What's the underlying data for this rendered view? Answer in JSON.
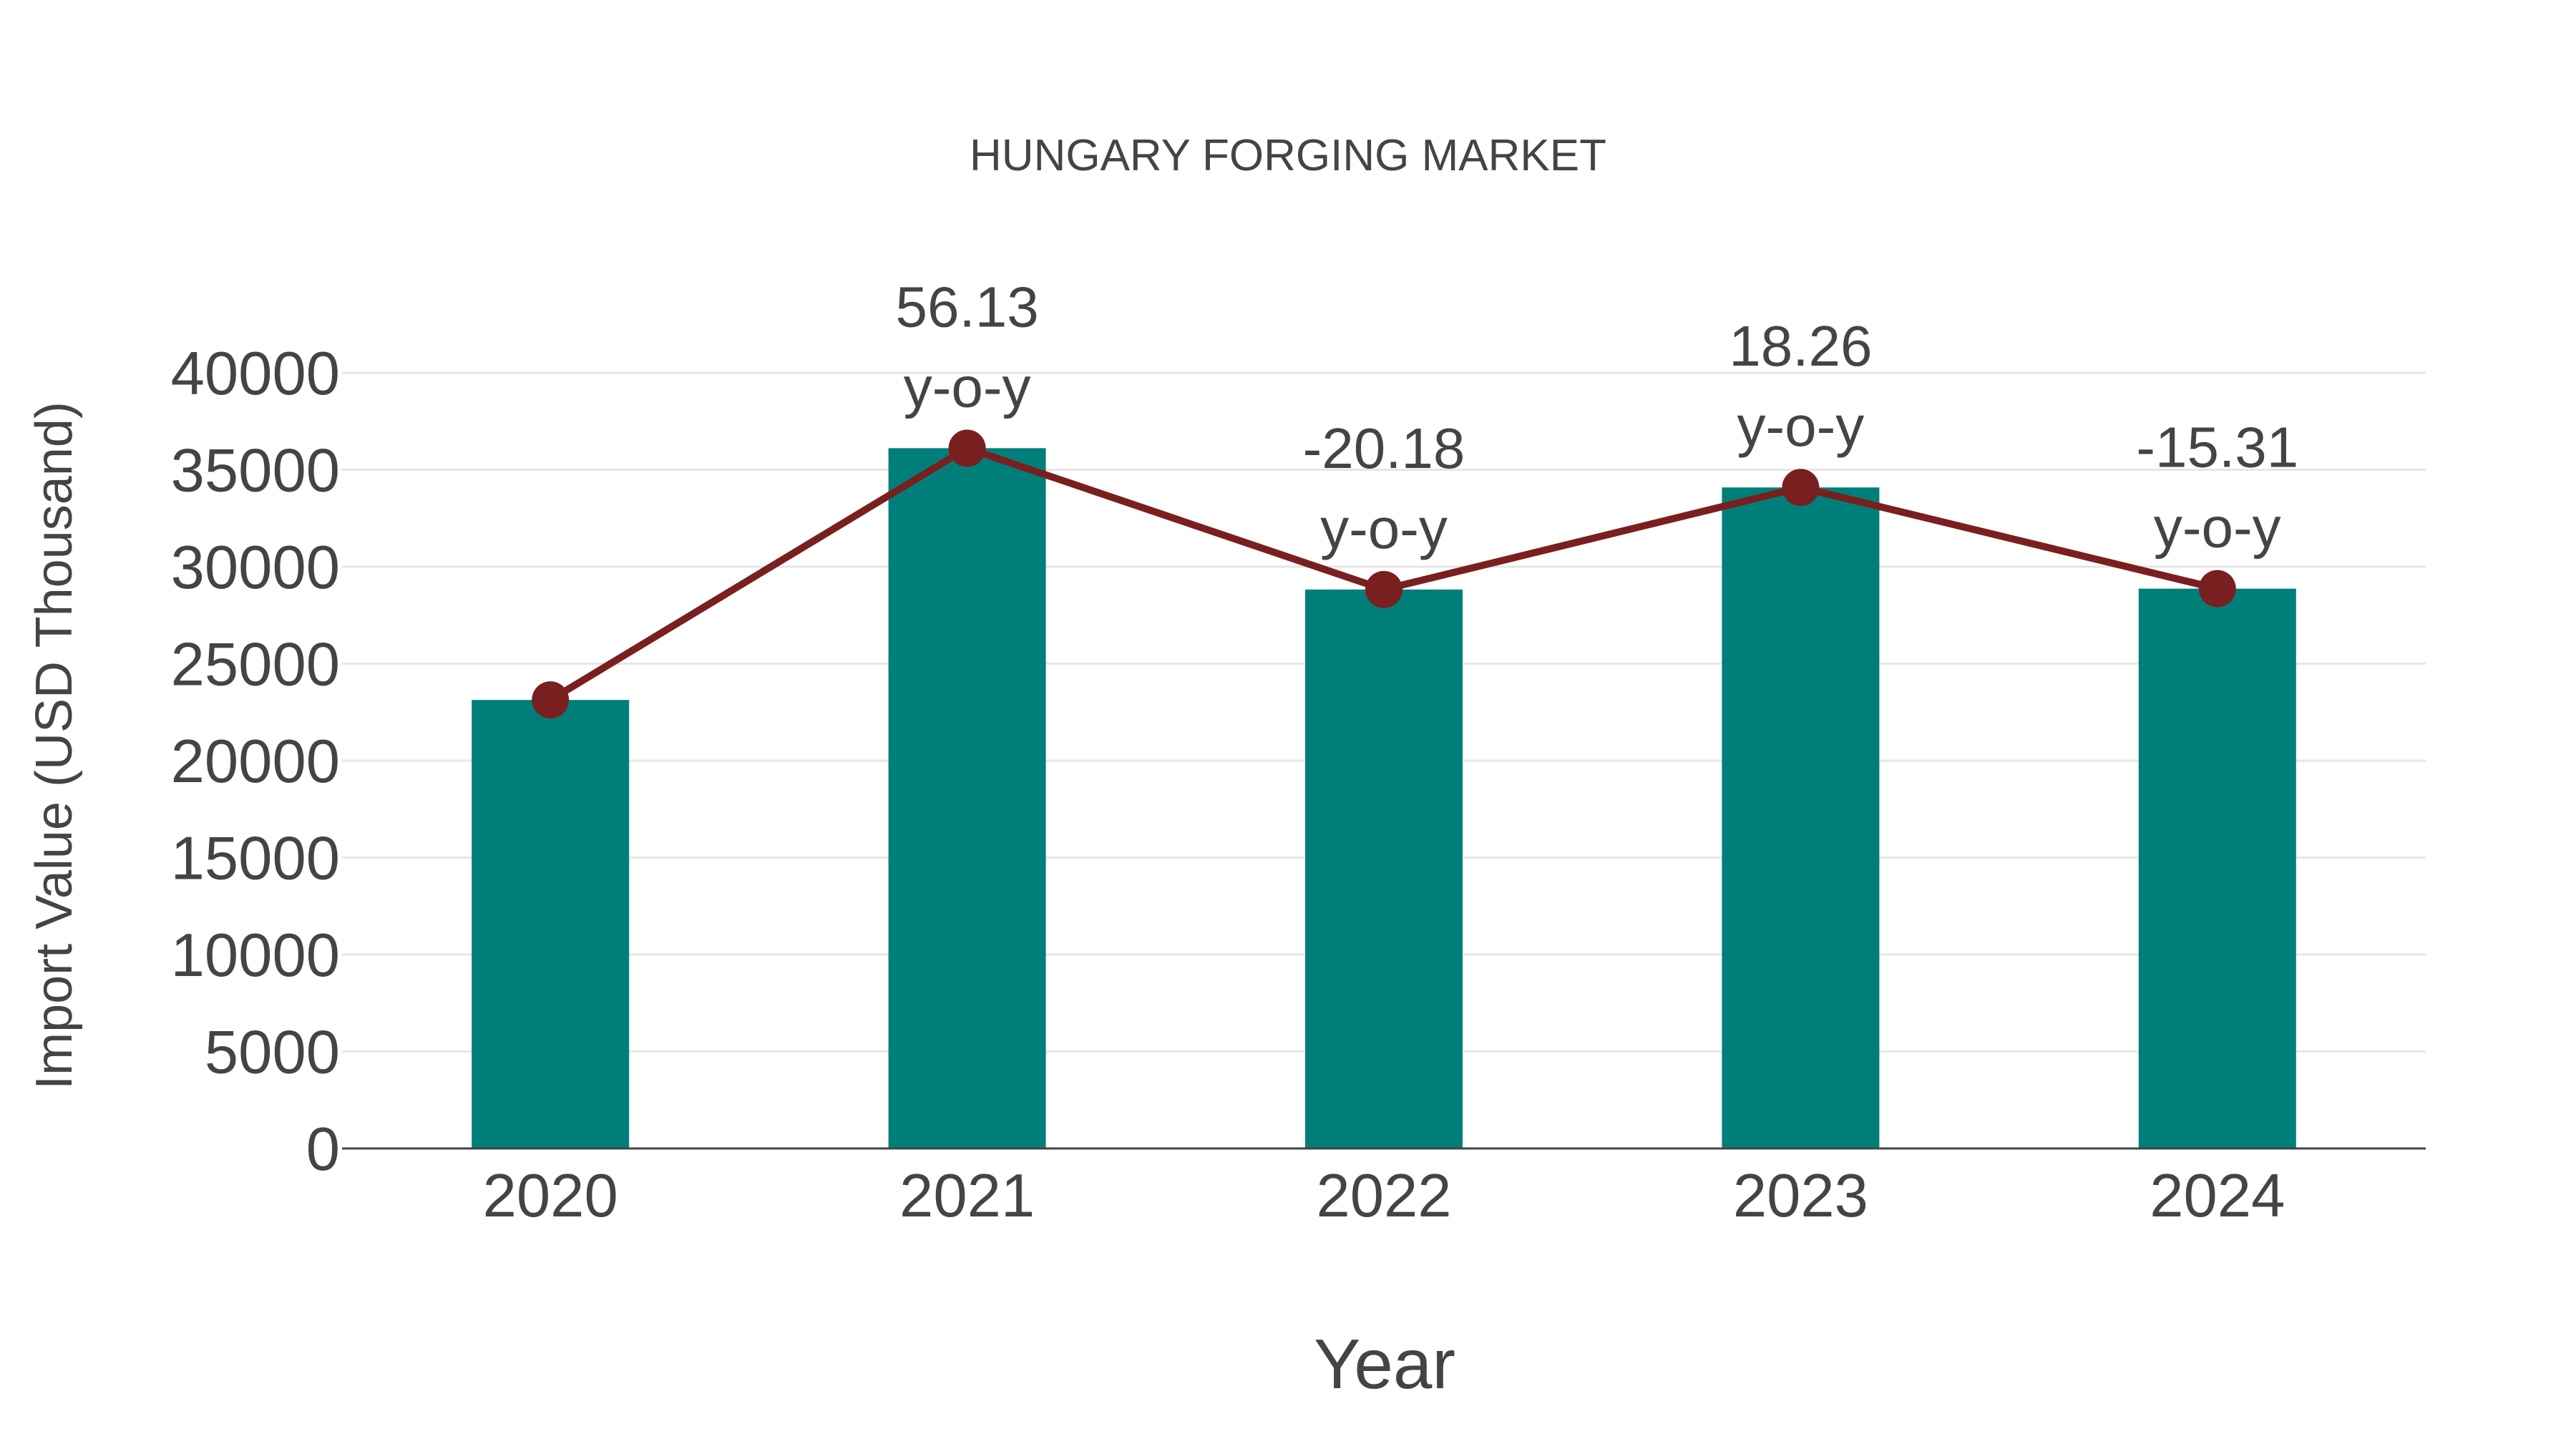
{
  "chart_data": {
    "type": "bar",
    "title": "HUNGARY FORGING MARKET",
    "xlabel": "Year",
    "ylabel": "Import Value (USD Thousand)",
    "categories": [
      "2020",
      "2021",
      "2022",
      "2023",
      "2024"
    ],
    "series": [
      {
        "name": "Import Value",
        "type": "bar",
        "color": "#007f7a",
        "values": [
          23130,
          36113,
          28825,
          34088,
          28869
        ]
      },
      {
        "name": "Trend",
        "type": "line",
        "color": "#7a1f1f",
        "values": [
          23130,
          36113,
          28825,
          34088,
          28869
        ]
      }
    ],
    "annotations": [
      {
        "category": "2021",
        "value": "56.13",
        "label": "y-o-y"
      },
      {
        "category": "2022",
        "value": "-20.18",
        "label": "y-o-y"
      },
      {
        "category": "2023",
        "value": "18.26",
        "label": "y-o-y"
      },
      {
        "category": "2024",
        "value": "-15.31",
        "label": "y-o-y"
      }
    ],
    "yticks": [
      "0",
      "5000",
      "10000",
      "15000",
      "20000",
      "25000",
      "30000",
      "35000",
      "40000"
    ],
    "ylim": [
      0,
      40000
    ],
    "grid": true,
    "legend": false
  }
}
